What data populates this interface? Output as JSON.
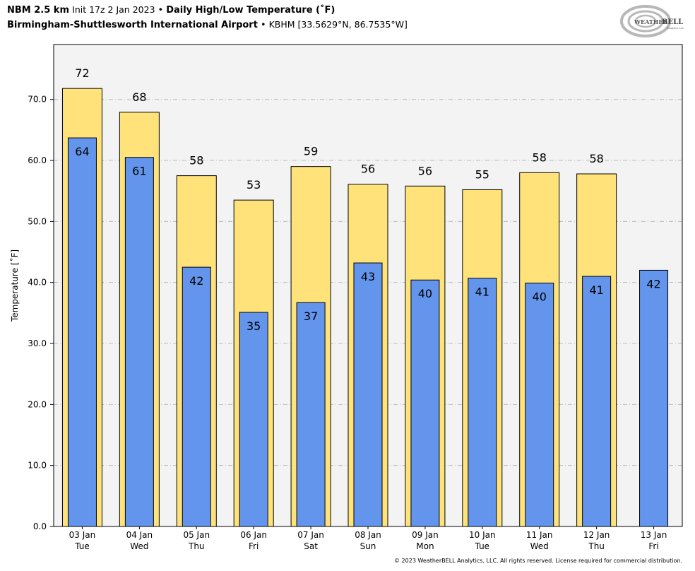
{
  "header": {
    "model": "NBM 2.5 km",
    "init": "Init 17z 2 Jan 2023",
    "bullet": "•",
    "product": "Daily High/Low Temperature (˚F)",
    "location": "Birmingham-Shuttlesworth International Airport",
    "station": "KBHM [33.5629°N, 86.7535°W]"
  },
  "logo": {
    "text": "WEATHERBELL",
    "sub": "Analytics LLC"
  },
  "footer": {
    "copyright": "© 2023 WeatherBELL Analytics, LLC. All rights reserved. License required for commercial distribution."
  },
  "colors": {
    "high": "#ffe37a",
    "low": "#6495ed",
    "plot_bg": "#f3f3f3",
    "grid": "#bbbbbb"
  },
  "chart_data": {
    "type": "bar",
    "title": "Daily High/Low Temperature (˚F)",
    "xlabel": "",
    "ylabel": "Temperature [˚F]",
    "ylim": [
      0,
      79
    ],
    "yticks": [
      0,
      10,
      20,
      30,
      40,
      50,
      60,
      70
    ],
    "ytick_labels": [
      "0.0",
      "10.0",
      "20.0",
      "30.0",
      "40.0",
      "50.0",
      "60.0",
      "70.0"
    ],
    "grid": true,
    "categories": [
      {
        "date": "03 Jan",
        "day": "Tue"
      },
      {
        "date": "04 Jan",
        "day": "Wed"
      },
      {
        "date": "05 Jan",
        "day": "Thu"
      },
      {
        "date": "06 Jan",
        "day": "Fri"
      },
      {
        "date": "07 Jan",
        "day": "Sat"
      },
      {
        "date": "08 Jan",
        "day": "Sun"
      },
      {
        "date": "09 Jan",
        "day": "Mon"
      },
      {
        "date": "10 Jan",
        "day": "Tue"
      },
      {
        "date": "11 Jan",
        "day": "Wed"
      },
      {
        "date": "12 Jan",
        "day": "Thu"
      },
      {
        "date": "13 Jan",
        "day": "Fri"
      }
    ],
    "series": [
      {
        "name": "High",
        "values": [
          71.8,
          67.9,
          57.5,
          53.5,
          59.0,
          56.1,
          55.8,
          55.2,
          58.0,
          57.8,
          null
        ],
        "labels": [
          "72",
          "68",
          "58",
          "53",
          "59",
          "56",
          "56",
          "55",
          "58",
          "58",
          null
        ]
      },
      {
        "name": "Low",
        "values": [
          63.7,
          60.5,
          42.5,
          35.1,
          36.7,
          43.2,
          40.4,
          40.7,
          39.9,
          41.0,
          42.0
        ],
        "labels": [
          "64",
          "61",
          "42",
          "35",
          "37",
          "43",
          "40",
          "41",
          "40",
          "41",
          "42"
        ]
      }
    ]
  }
}
